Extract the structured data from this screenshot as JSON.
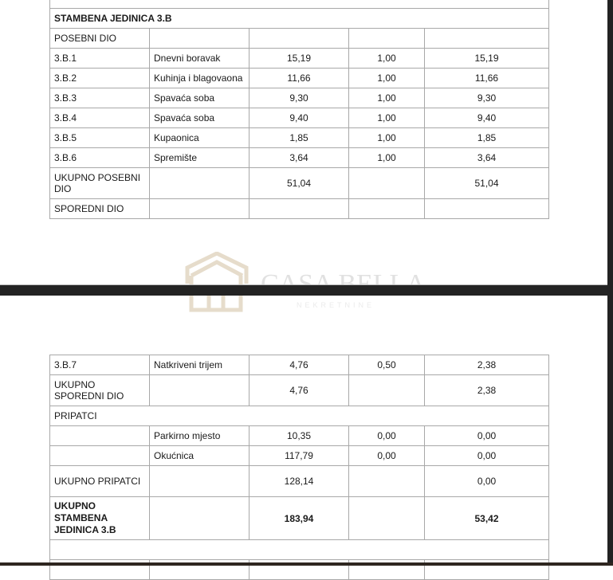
{
  "watermark": {
    "brand": "CASA BELLA",
    "sub": "NEKRETNINE",
    "color": "#e6dccb"
  },
  "table_top": {
    "rows": [
      {
        "type": "full",
        "cells": [
          ""
        ],
        "h": 25
      },
      {
        "type": "full",
        "bold": true,
        "cells": [
          "STAMBENA JEDINICA 3.B"
        ]
      },
      {
        "cells": [
          "POSEBNI DIO",
          "",
          "",
          "",
          ""
        ]
      },
      {
        "cells": [
          "3.B.1",
          "Dnevni boravak",
          "15,19",
          "1,00",
          "15,19"
        ]
      },
      {
        "cells": [
          "3.B.2",
          "Kuhinja i blagovaona",
          "11,66",
          "1,00",
          "11,66"
        ]
      },
      {
        "cells": [
          "3.B.3",
          "Spavaća soba",
          "9,30",
          "1,00",
          "9,30"
        ]
      },
      {
        "cells": [
          "3.B.4",
          "Spavaća soba",
          "9,40",
          "1,00",
          "9,40"
        ]
      },
      {
        "cells": [
          "3.B.5",
          "Kupaonica",
          "1,85",
          "1,00",
          "1,85"
        ]
      },
      {
        "cells": [
          "3.B.6",
          "Spremište",
          "3,64",
          "1,00",
          "3,64"
        ]
      },
      {
        "tall": true,
        "cells": [
          "UKUPNO POSEBNI DIO",
          "",
          "51,04",
          "",
          "51,04"
        ]
      },
      {
        "cells": [
          "SPOREDNI DIO",
          "",
          "",
          "",
          ""
        ]
      }
    ]
  },
  "table_bottom": {
    "rows": [
      {
        "cells": [
          "3.B.7",
          "Natkriveni trijem",
          "4,76",
          "0,50",
          "2,38"
        ]
      },
      {
        "tall": true,
        "cells": [
          "UKUPNO SPOREDNI DIO",
          "",
          "4,76",
          "",
          "2,38"
        ]
      },
      {
        "type": "full",
        "cells": [
          "PRIPATCI"
        ]
      },
      {
        "cells": [
          "",
          "Parkirno mjesto",
          "10,35",
          "0,00",
          "0,00"
        ]
      },
      {
        "cells": [
          "",
          "Okućnica",
          "117,79",
          "0,00",
          "0,00"
        ]
      },
      {
        "tall": true,
        "cells": [
          "UKUPNO PRIPATCI",
          "",
          "128,14",
          "",
          "0,00"
        ]
      },
      {
        "xtall": true,
        "bold": true,
        "cells": [
          "UKUPNO STAMBENA JEDINICA 3.B",
          "",
          "183,94",
          "",
          "53,42"
        ]
      },
      {
        "type": "full",
        "cells": [
          ""
        ]
      },
      {
        "cells": [
          "",
          "",
          "",
          "",
          ""
        ]
      }
    ]
  }
}
